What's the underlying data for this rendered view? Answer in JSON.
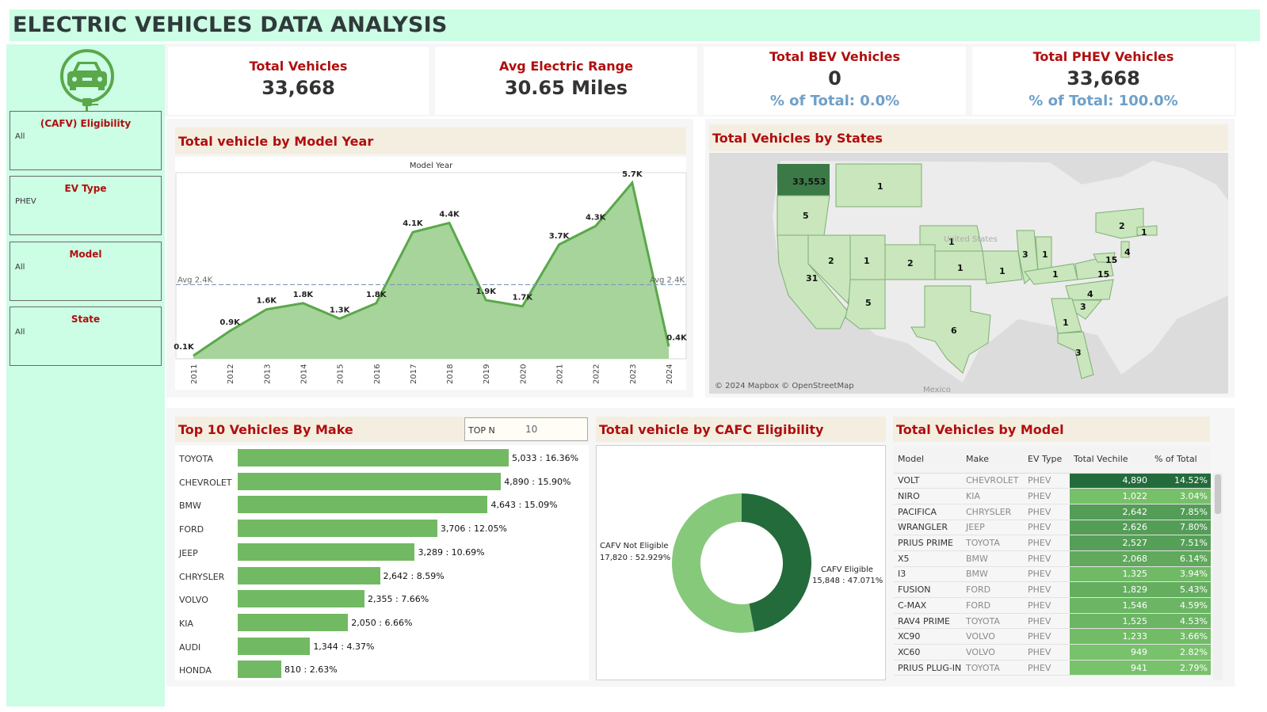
{
  "title": "ELECTRIC VEHICLES DATA ANALYSIS",
  "filters": [
    {
      "title": "(CAFV) Eligibility",
      "value": "All"
    },
    {
      "title": "EV Type",
      "value": "PHEV"
    },
    {
      "title": "Model",
      "value": "All"
    },
    {
      "title": "State",
      "value": "All"
    }
  ],
  "logo_icon": "ev-car-plug-icon",
  "kpis": [
    {
      "title": "Total Vehicles",
      "value": "33,668",
      "sub": ""
    },
    {
      "title": "Avg Electric Range",
      "value": "30.65 Miles",
      "sub": ""
    },
    {
      "title": "Total BEV Vehicles",
      "value": "0",
      "sub": "% of Total: 0.0%"
    },
    {
      "title": "Total PHEV Vehicles",
      "value": "33,668",
      "sub": "% of Total: 100.0%"
    }
  ],
  "sections": {
    "model_year": "Total vehicle by Model Year",
    "states": "Total Vehicles by States",
    "make": "Top 10 Vehicles By Make",
    "cafv": "Total vehicle by CAFC Eligibility",
    "model": "Total Vehicles by Model"
  },
  "topn": {
    "label": "TOP N",
    "value": "10"
  },
  "map": {
    "attribution": "© 2024 Mapbox © OpenStreetMap",
    "country_label": "United States",
    "mexico_label": "Mexico"
  },
  "chart_data": [
    {
      "type": "area",
      "title": "Total vehicle by Model Year",
      "xlabel": "Model Year",
      "x": [
        "2011",
        "2012",
        "2013",
        "2014",
        "2015",
        "2016",
        "2017",
        "2018",
        "2019",
        "2020",
        "2021",
        "2022",
        "2023",
        "2024"
      ],
      "values": [
        0.1,
        0.9,
        1.6,
        1.8,
        1.3,
        1.8,
        4.1,
        4.4,
        1.9,
        1.7,
        3.7,
        4.3,
        5.7,
        0.4
      ],
      "labels": [
        "0.1K",
        "0.9K",
        "1.6K",
        "1.8K",
        "1.3K",
        "1.8K",
        "4.1K",
        "4.4K",
        "1.9K",
        "1.7K",
        "3.7K",
        "4.3K",
        "5.7K",
        "0.4K"
      ],
      "reference_line": {
        "label": "Avg 2.4K",
        "value": 2.4
      },
      "ylim": [
        0,
        5.9
      ],
      "color": "#5aa84a",
      "fill": "#a6d49a"
    },
    {
      "type": "bar",
      "title": "Top 10 Vehicles By Make",
      "categories": [
        "TOYOTA",
        "CHEVROLET",
        "BMW",
        "FORD",
        "JEEP",
        "CHRYSLER",
        "VOLVO",
        "KIA",
        "AUDI",
        "HONDA"
      ],
      "values": [
        5033,
        4890,
        4643,
        3706,
        3289,
        2642,
        2355,
        2050,
        1344,
        810
      ],
      "labels": [
        "5,033 : 16.36%",
        "4,890 : 15.90%",
        "4,643 : 15.09%",
        "3,706 : 12.05%",
        "3,289 : 10.69%",
        "2,642 : 8.59%",
        "2,355 : 7.66%",
        "2,050 : 6.66%",
        "1,344 : 4.37%",
        "810 : 2.63%"
      ],
      "color": "#72b963"
    },
    {
      "type": "pie",
      "title": "Total vehicle by CAFC Eligibility",
      "slices": [
        {
          "name": "CAFV Eligible",
          "value": 15848,
          "label": "15,848 : 47.071%",
          "color": "#236b3b"
        },
        {
          "name": "CAFV Not Eligible",
          "value": 17820,
          "label": "17,820 : 52.929%",
          "color": "#86c97a"
        }
      ]
    },
    {
      "type": "table",
      "title": "Total Vehicles by Model",
      "columns": [
        "Model",
        "Make",
        "EV Type",
        "Total Vechile",
        "% of Total"
      ],
      "rows": [
        [
          "VOLT",
          "CHEVROLET",
          "PHEV",
          "4,890",
          "14.52%"
        ],
        [
          "NIRO",
          "KIA",
          "PHEV",
          "1,022",
          "3.04%"
        ],
        [
          "PACIFICA",
          "CHRYSLER",
          "PHEV",
          "2,642",
          "7.85%"
        ],
        [
          "WRANGLER",
          "JEEP",
          "PHEV",
          "2,626",
          "7.80%"
        ],
        [
          "PRIUS PRIME",
          "TOYOTA",
          "PHEV",
          "2,527",
          "7.51%"
        ],
        [
          "X5",
          "BMW",
          "PHEV",
          "2,068",
          "6.14%"
        ],
        [
          "I3",
          "BMW",
          "PHEV",
          "1,325",
          "3.94%"
        ],
        [
          "FUSION",
          "FORD",
          "PHEV",
          "1,829",
          "5.43%"
        ],
        [
          "C-MAX",
          "FORD",
          "PHEV",
          "1,546",
          "4.59%"
        ],
        [
          "RAV4 PRIME",
          "TOYOTA",
          "PHEV",
          "1,525",
          "4.53%"
        ],
        [
          "XC90",
          "VOLVO",
          "PHEV",
          "1,233",
          "3.66%"
        ],
        [
          "XC60",
          "VOLVO",
          "PHEV",
          "949",
          "2.82%"
        ],
        [
          "PRIUS PLUG-IN",
          "TOYOTA",
          "PHEV",
          "941",
          "2.79%"
        ]
      ],
      "shade_values": [
        4890,
        1022,
        2642,
        2626,
        2527,
        2068,
        1325,
        1829,
        1546,
        1525,
        1233,
        949,
        941
      ]
    },
    {
      "type": "map",
      "title": "Total Vehicles by States",
      "values": [
        {
          "state": "WA",
          "value": "33,553"
        },
        {
          "state": "OR",
          "value": "5"
        },
        {
          "state": "CA",
          "value": "31"
        },
        {
          "state": "NV",
          "value": "2"
        },
        {
          "state": "AZ",
          "value": "5"
        },
        {
          "state": "UT",
          "value": "1"
        },
        {
          "state": "MT",
          "value": "1"
        },
        {
          "state": "CO",
          "value": "2"
        },
        {
          "state": "NE",
          "value": "1"
        },
        {
          "state": "KS",
          "value": "1"
        },
        {
          "state": "TX",
          "value": "6"
        },
        {
          "state": "MO",
          "value": "1"
        },
        {
          "state": "IL",
          "value": "3"
        },
        {
          "state": "IN",
          "value": "1"
        },
        {
          "state": "KY",
          "value": "1"
        },
        {
          "state": "NC",
          "value": "4"
        },
        {
          "state": "SC",
          "value": "3"
        },
        {
          "state": "GA",
          "value": "1"
        },
        {
          "state": "FL",
          "value": "3"
        },
        {
          "state": "VA",
          "value": "15"
        },
        {
          "state": "MD",
          "value": "15"
        },
        {
          "state": "NJ",
          "value": "4"
        },
        {
          "state": "NY",
          "value": "2"
        },
        {
          "state": "MA",
          "value": "1"
        }
      ]
    }
  ]
}
